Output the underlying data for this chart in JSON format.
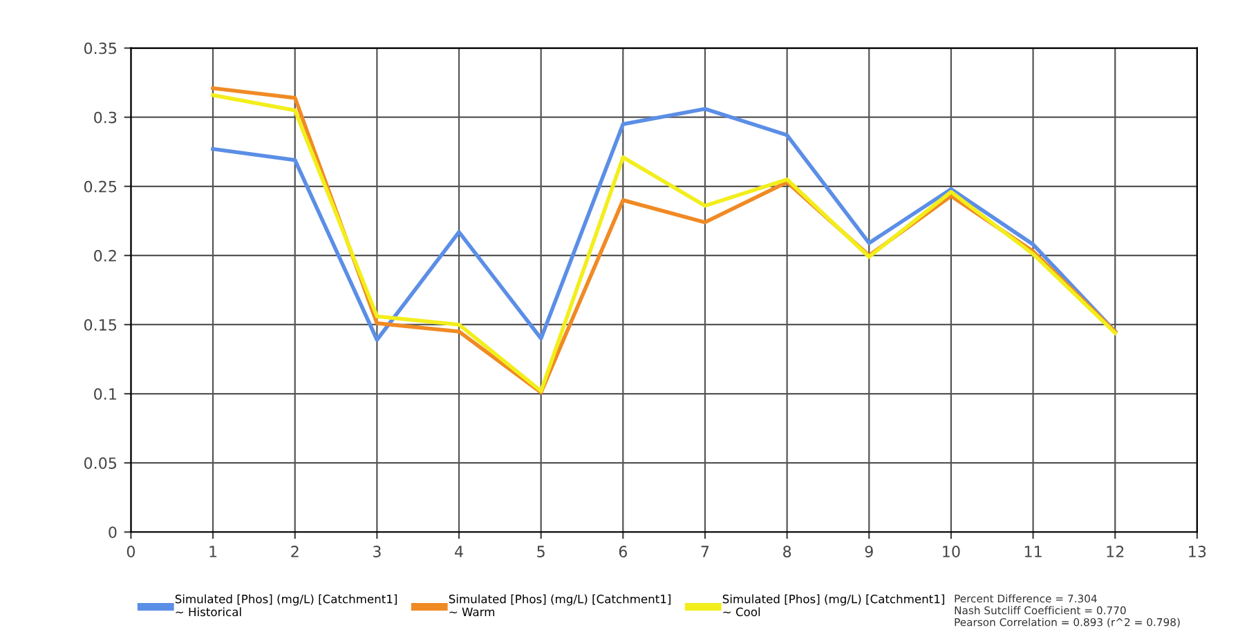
{
  "chart_data": {
    "type": "line",
    "x": [
      1,
      2,
      3,
      4,
      5,
      6,
      7,
      8,
      9,
      10,
      11,
      12
    ],
    "series": [
      {
        "name": "Simulated [Phos] (mg/L) [Catchment1]\n~ Historical",
        "color": "#5b8ee6",
        "values": [
          0.277,
          0.269,
          0.139,
          0.217,
          0.14,
          0.295,
          0.306,
          0.287,
          0.209,
          0.248,
          0.208,
          0.145
        ]
      },
      {
        "name": "Simulated [Phos] (mg/L) [Catchment1]\n~ Warm",
        "color": "#f08a24",
        "values": [
          0.321,
          0.314,
          0.151,
          0.145,
          0.101,
          0.24,
          0.224,
          0.253,
          0.2,
          0.243,
          0.203,
          0.145
        ]
      },
      {
        "name": "Simulated [Phos] (mg/L) [Catchment1]\n~ Cool",
        "color": "#f2ee1c",
        "values": [
          0.316,
          0.305,
          0.156,
          0.15,
          0.102,
          0.271,
          0.236,
          0.255,
          0.199,
          0.246,
          0.201,
          0.144
        ]
      }
    ],
    "xlim": [
      0,
      13
    ],
    "xticks": [
      0,
      1,
      2,
      3,
      4,
      5,
      6,
      7,
      8,
      9,
      10,
      11,
      12,
      13
    ],
    "ylim": [
      0,
      0.35
    ],
    "yticks": [
      0,
      0.05,
      0.1,
      0.15,
      0.2,
      0.25,
      0.3,
      0.35
    ],
    "grid": true,
    "legend": "bottom",
    "marker": "none",
    "line_style": "solid",
    "annotations": [
      "Percent Difference = 7.304\nNash Sutcliff Coefficient = 0.770\nPearson Correlation = 0.893 (r^2 = 0.798)"
    ]
  }
}
